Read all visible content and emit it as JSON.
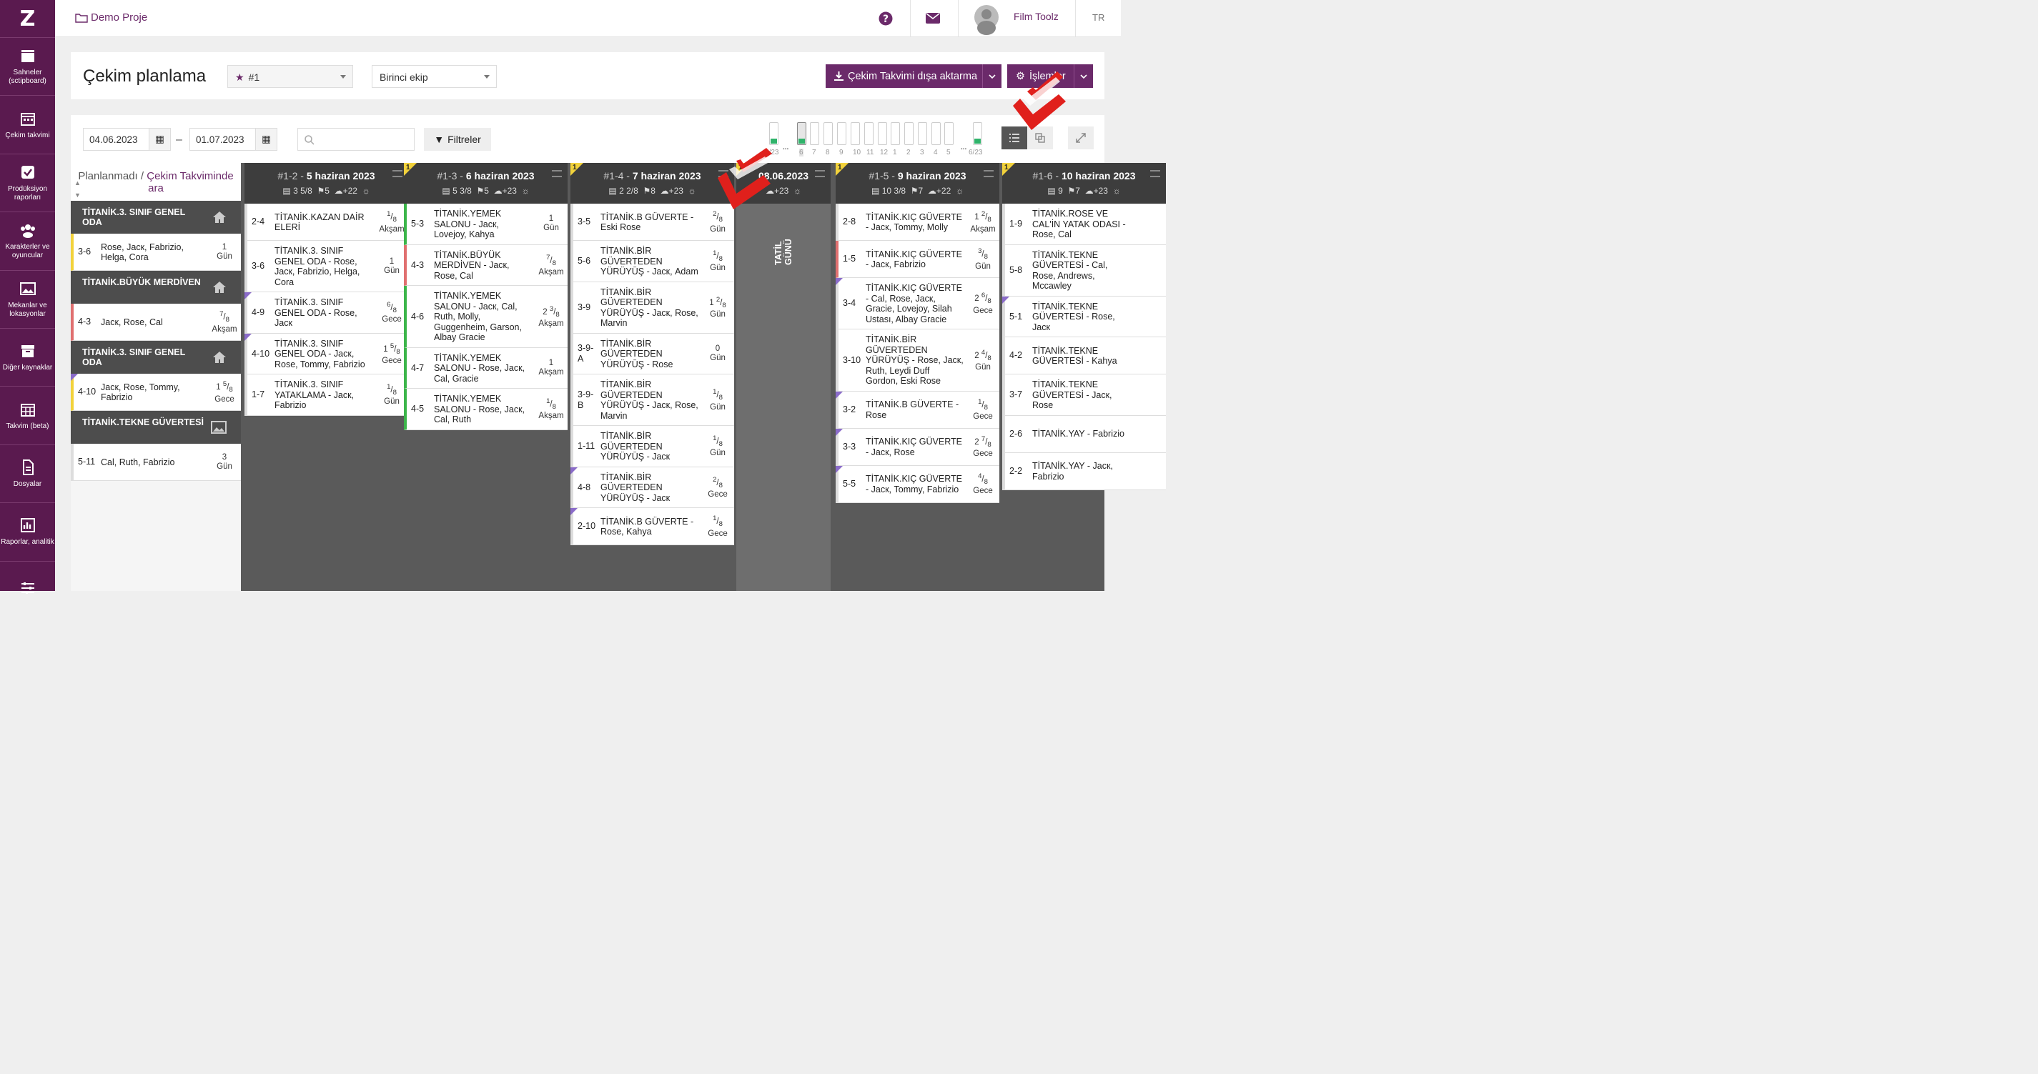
{
  "app": {
    "logo": "Z"
  },
  "sidebar": [
    {
      "label": "Sahneler (sctipboard)",
      "icon": "clapperboard-icon"
    },
    {
      "label": "Çekim takvimi",
      "icon": "calendar-icon"
    },
    {
      "label": "Prodüksiyon raporları",
      "icon": "checkbox-icon"
    },
    {
      "label": "Karakterler ve oyuncular",
      "icon": "people-icon"
    },
    {
      "label": "Mekanlar ve lokasyonlar",
      "icon": "image-icon"
    },
    {
      "label": "Diğer kaynaklar",
      "icon": "box-icon"
    },
    {
      "label": "Takvim (beta)",
      "icon": "calendar-grid-icon"
    },
    {
      "label": "Dosyalar",
      "icon": "file-icon"
    },
    {
      "label": "Raporlar, analitik",
      "icon": "chart-icon"
    },
    {
      "label": "",
      "icon": "sliders-icon"
    }
  ],
  "topbar": {
    "project": "Demo Proje",
    "user": "Film Toolz",
    "lang": "TR"
  },
  "header": {
    "title": "Çekim planlama",
    "version_select": "#1",
    "crew_select": "Birinci ekip",
    "export_label": "Çekim Takvimi dışa aktarma",
    "actions_label": "İşlemler"
  },
  "toolbar": {
    "date_from": "04.06.2023",
    "date_to": "01.07.2023",
    "dash": "–",
    "filter_label": "Filtreler",
    "search_placeholder": "",
    "mini_labels": [
      "6/23",
      "6",
      "7",
      "8",
      "9",
      "10",
      "11",
      "12",
      "1",
      "2",
      "3",
      "4",
      "5",
      "6/23"
    ],
    "dots": "..."
  },
  "unscheduled": {
    "title": "Planlanmadı",
    "link": "Çekim Takviminde ara",
    "groups": [
      {
        "location": "TİTANİK.3. SINIF GENEL ODA",
        "icon": "home-icon",
        "scenes": [
          {
            "num": "3-6",
            "desc": "Rose, Jacк, Fabrizio, Helga, Cora",
            "len_whole": "1",
            "len_num": "",
            "len_den": "",
            "tod": "Gün",
            "color": "#f2d23b",
            "tri": false
          }
        ]
      },
      {
        "location": "TİTANİK.BÜYÜK MERDİVEN",
        "icon": "home-icon",
        "scenes": [
          {
            "num": "4-3",
            "desc": "Jacк, Rose, Cal",
            "len_whole": "",
            "len_num": "7",
            "len_den": "8",
            "tod": "Akşam",
            "color": "#e07070",
            "tri": false
          }
        ]
      },
      {
        "location": "TİTANİK.3. SINIF GENEL ODA",
        "icon": "home-icon",
        "scenes": [
          {
            "num": "4-10",
            "desc": "Jacк, Rose, Tommy, Fabrizio",
            "len_whole": "1",
            "len_num": "5",
            "len_den": "8",
            "tod": "Gece",
            "color": "#f2d23b",
            "tri": true
          }
        ]
      },
      {
        "location": "TİTANİK.TEKNE GÜVERTESİ",
        "icon": "image-icon",
        "scenes": [
          {
            "num": "5-11",
            "desc": "Cal, Ruth, Fabrizio",
            "len_whole": "3",
            "len_num": "",
            "len_den": "",
            "tod": "Gün",
            "color": "#dddddd",
            "tri": false
          }
        ]
      }
    ]
  },
  "days": [
    {
      "label": "#1-2 -",
      "date": "5 haziran 2023",
      "badge": "",
      "stats": {
        "pages": "3 5/8",
        "scenes": "5",
        "weather": "+22"
      },
      "scenes": [
        {
          "num": "2-4",
          "desc": "TİTANİK.KAZAN DAİR ELERİ",
          "len_whole": "",
          "len_num": "1",
          "len_den": "8",
          "tod": "Akşam",
          "color": "#dddddd",
          "tri": false
        },
        {
          "num": "3-6",
          "desc": "TİTANİK.3. SINIF GENEL ODA - Rose, Jacк, Fabrizio, Helga, Cora",
          "len_whole": "1",
          "len_num": "",
          "len_den": "",
          "tod": "Gün",
          "color": "#dddddd",
          "tri": false
        },
        {
          "num": "4-9",
          "desc": "TİTANİK.3. SINIF GENEL ODA - Rose, Jacк",
          "len_whole": "",
          "len_num": "6",
          "len_den": "8",
          "tod": "Gece",
          "color": "#dddddd",
          "tri": true
        },
        {
          "num": "4-10",
          "desc": "TİTANİK.3. SINIF GENEL ODA - Jacк, Rose, Tommy, Fabrizio",
          "len_whole": "1",
          "len_num": "5",
          "len_den": "8",
          "tod": "Gece",
          "color": "#dddddd",
          "tri": true
        },
        {
          "num": "1-7",
          "desc": "TİTANİK.3. SINIF YATAKLAMA - Jacк, Fabrizio",
          "len_whole": "",
          "len_num": "1",
          "len_den": "8",
          "tod": "Gün",
          "color": "#dddddd",
          "tri": false
        }
      ]
    },
    {
      "label": "#1-3 -",
      "date": "6 haziran 2023",
      "badge": "1",
      "stats": {
        "pages": "5 3/8",
        "scenes": "5",
        "weather": "+23"
      },
      "scenes": [
        {
          "num": "5-3",
          "desc": "TİTANİK.YEMEK SALONU - Jacк, Lovejoy, Kahya",
          "len_whole": "1",
          "len_num": "",
          "len_den": "",
          "tod": "Gün",
          "color": "#3cb54a",
          "tri": false
        },
        {
          "num": "4-3",
          "desc": "TİTANİK.BÜYÜK MERDİVEN - Jacк, Rose, Cal",
          "len_whole": "",
          "len_num": "7",
          "len_den": "8",
          "tod": "Akşam",
          "color": "#e07070",
          "tri": false
        },
        {
          "num": "4-6",
          "desc": "TİTANİK.YEMEK SALONU - Jacк, Cal, Ruth, Molly, Guggenheim, Garson, Albay Gracie",
          "len_whole": "2",
          "len_num": "3",
          "len_den": "8",
          "tod": "Akşam",
          "color": "#3cb54a",
          "tri": false
        },
        {
          "num": "4-7",
          "desc": "TİTANİK.YEMEK SALONU - Rose, Jacк, Cal, Gracie",
          "len_whole": "1",
          "len_num": "",
          "len_den": "",
          "tod": "Akşam",
          "color": "#3cb54a",
          "tri": false
        },
        {
          "num": "4-5",
          "desc": "TİTANİK.YEMEK SALONU - Rose, Jacк, Cal, Ruth",
          "len_whole": "",
          "len_num": "1",
          "len_den": "8",
          "tod": "Akşam",
          "color": "#3cb54a",
          "tri": false
        }
      ]
    },
    {
      "label": "#1-4 -",
      "date": "7 haziran 2023",
      "badge": "1",
      "stats": {
        "pages": "2 2/8",
        "scenes": "8",
        "weather": "+23"
      },
      "scenes": [
        {
          "num": "3-5",
          "desc": "TİTANİK.B GÜVERTE - Eski Rose",
          "len_whole": "",
          "len_num": "2",
          "len_den": "8",
          "tod": "Gün",
          "color": "#dddddd",
          "tri": false
        },
        {
          "num": "5-6",
          "desc": "TİTANİK.BİR GÜVERTEDEN YÜRÜYÜŞ - Jacк, Adam",
          "len_whole": "",
          "len_num": "1",
          "len_den": "8",
          "tod": "Gün",
          "color": "#dddddd",
          "tri": false
        },
        {
          "num": "3-9",
          "desc": "TİTANİK.BİR GÜVERTEDEN YÜRÜYÜŞ - Jacк, Rose, Marvin",
          "len_whole": "1",
          "len_num": "2",
          "len_den": "8",
          "tod": "Gün",
          "color": "#dddddd",
          "tri": false
        },
        {
          "num": "3-9-A",
          "desc": "TİTANİK.BİR GÜVERTEDEN YÜRÜYÜŞ - Rose",
          "len_whole": "0",
          "len_num": "",
          "len_den": "",
          "tod": "Gün",
          "color": "#dddddd",
          "tri": false
        },
        {
          "num": "3-9-B",
          "desc": "TİTANİK.BİR GÜVERTEDEN YÜRÜYÜŞ - Jacк, Rose, Marvin",
          "len_whole": "",
          "len_num": "1",
          "len_den": "8",
          "tod": "Gün",
          "color": "#dddddd",
          "tri": false
        },
        {
          "num": "1-11",
          "desc": "TİTANİK.BİR GÜVERTEDEN YÜRÜYÜŞ - Jacк",
          "len_whole": "",
          "len_num": "1",
          "len_den": "8",
          "tod": "Gün",
          "color": "#dddddd",
          "tri": false
        },
        {
          "num": "4-8",
          "desc": "TİTANİK.BİR GÜVERTEDEN YÜRÜYÜŞ - Jacк",
          "len_whole": "",
          "len_num": "2",
          "len_den": "8",
          "tod": "Gece",
          "color": "#dddddd",
          "tri": true
        },
        {
          "num": "2-10",
          "desc": "TİTANİK.B GÜVERTE - Rose, Kahya",
          "len_whole": "",
          "len_num": "1",
          "len_den": "8",
          "tod": "Gece",
          "color": "#dddddd",
          "tri": true
        }
      ]
    },
    {
      "label": "",
      "date": "08.06.2023",
      "badge": "1",
      "holiday": "TATİL GÜNÜ",
      "stats": {
        "weather": "+23"
      },
      "scenes": []
    },
    {
      "label": "#1-5 -",
      "date": "9 haziran 2023",
      "badge": "1",
      "stats": {
        "pages": "10 3/8",
        "scenes": "7",
        "weather": "+22"
      },
      "scenes": [
        {
          "num": "2-8",
          "desc": "TİTANİK.KIÇ GÜVERTE - Jacк, Tommy, Molly",
          "len_whole": "1",
          "len_num": "2",
          "len_den": "8",
          "tod": "Akşam",
          "color": "#dddddd",
          "tri": false
        },
        {
          "num": "1-5",
          "desc": "TİTANİK.KIÇ GÜVERTE - Jacк, Fabrizio",
          "len_whole": "",
          "len_num": "3",
          "len_den": "8",
          "tod": "Gün",
          "color": "#e07070",
          "tri": false
        },
        {
          "num": "3-4",
          "desc": "TİTANİK.KIÇ GÜVERTE - Cal, Rose, Jacк, Gracie, Lovejoy, Silah Ustası, Albay Gracie",
          "len_whole": "2",
          "len_num": "6",
          "len_den": "8",
          "tod": "Gece",
          "color": "#dddddd",
          "tri": true
        },
        {
          "num": "3-10",
          "desc": "TİTANİK.BİR GÜVERTEDEN YÜRÜYÜŞ - Rose, Jacк, Ruth, Leydi Duff Gordon, Eski Rose",
          "len_whole": "2",
          "len_num": "4",
          "len_den": "8",
          "tod": "Gün",
          "color": "#dddddd",
          "tri": false
        },
        {
          "num": "3-2",
          "desc": "TİTANİK.B GÜVERTE - Rose",
          "len_whole": "",
          "len_num": "1",
          "len_den": "8",
          "tod": "Gece",
          "color": "#dddddd",
          "tri": true
        },
        {
          "num": "3-3",
          "desc": "TİTANİK.KIÇ GÜVERTE - Jacк, Rose",
          "len_whole": "2",
          "len_num": "7",
          "len_den": "8",
          "tod": "Gece",
          "color": "#dddddd",
          "tri": true
        },
        {
          "num": "5-5",
          "desc": "TİTANİK.KIÇ GÜVERTE - Jacк, Tommy, Fabrizio",
          "len_whole": "",
          "len_num": "4",
          "len_den": "8",
          "tod": "Gece",
          "color": "#dddddd",
          "tri": true
        }
      ]
    },
    {
      "label": "#1-6 -",
      "date": "10 haziran 2023",
      "badge": "1",
      "stats": {
        "pages": "9",
        "scenes": "7",
        "weather": "+23"
      },
      "scenes": [
        {
          "num": "1-9",
          "desc": "TİTANİK.ROSE VE CAL'İN YATAK ODASI - Rose, Cal",
          "len_whole": "",
          "len_num": "",
          "len_den": "",
          "tod": "",
          "color": "#dddddd",
          "tri": false
        },
        {
          "num": "5-8",
          "desc": "TİTANİK.TEKNE GÜVERTESİ - Cal, Rose, Andrews, Mccawley",
          "len_whole": "",
          "len_num": "",
          "len_den": "",
          "tod": "",
          "color": "#dddddd",
          "tri": false
        },
        {
          "num": "5-1",
          "desc": "TİTANİK.TEKNE GÜVERTESİ - Rose, Jacк",
          "len_whole": "",
          "len_num": "",
          "len_den": "",
          "tod": "",
          "color": "#dddddd",
          "tri": true
        },
        {
          "num": "4-2",
          "desc": "TİTANİK.TEKNE GÜVERTESİ - Kahya",
          "len_whole": "",
          "len_num": "",
          "len_den": "",
          "tod": "",
          "color": "#dddddd",
          "tri": false
        },
        {
          "num": "3-7",
          "desc": "TİTANİK.TEKNE GÜVERTESİ - Jacк, Rose",
          "len_whole": "",
          "len_num": "",
          "len_den": "",
          "tod": "",
          "color": "#dddddd",
          "tri": false
        },
        {
          "num": "2-6",
          "desc": "TİTANİK.YAY - Fabrizio",
          "len_whole": "",
          "len_num": "",
          "len_den": "",
          "tod": "",
          "color": "#dddddd",
          "tri": false
        },
        {
          "num": "2-2",
          "desc": "TİTANİK.YAY - Jacк, Fabrizio",
          "len_whole": "",
          "len_num": "",
          "len_den": "",
          "tod": "",
          "color": "#dddddd",
          "tri": false
        }
      ]
    }
  ],
  "colors": {
    "brand": "#5a1a4f",
    "accent": "#6b2a6a",
    "arrow": "#e0201c"
  }
}
